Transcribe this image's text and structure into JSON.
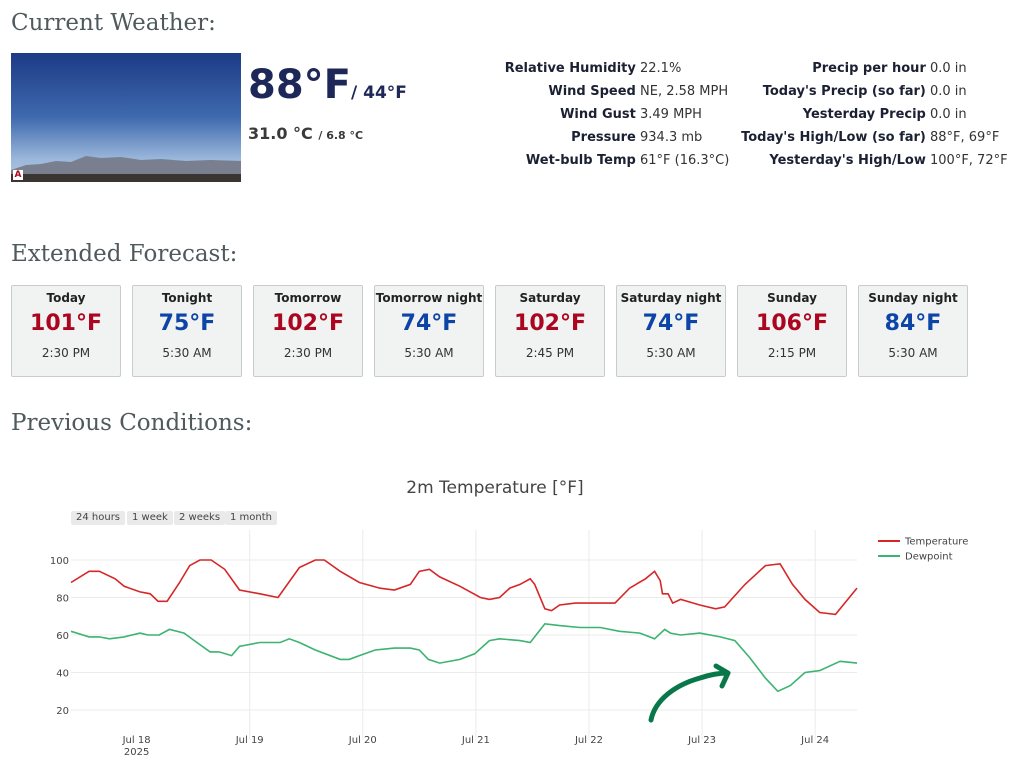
{
  "sections": {
    "current": "Current Weather:",
    "forecast": "Extended Forecast:",
    "previous": "Previous Conditions:"
  },
  "current": {
    "temp_f": "88°F",
    "dewpoint_f": "/ 44°F",
    "temp_c": "31.0 °C",
    "dewpoint_c": "/ 6.8 °C",
    "left_stats": [
      {
        "label": "Relative Humidity",
        "value": "22.1%"
      },
      {
        "label": "Wind Speed",
        "value": "NE, 2.58 MPH"
      },
      {
        "label": "Wind Gust",
        "value": "3.49 MPH"
      },
      {
        "label": "Pressure",
        "value": "934.3 mb"
      },
      {
        "label": "Wet-bulb Temp",
        "value": "61°F (16.3°C)"
      }
    ],
    "right_stats": [
      {
        "label": "Precip per hour",
        "value": "0.0 in"
      },
      {
        "label": "Today's Precip (so far)",
        "value": "0.0 in"
      },
      {
        "label": "Yesterday Precip",
        "value": "0.0 in"
      },
      {
        "label": "Today's High/Low (so far)",
        "value": "88°F, 69°F"
      },
      {
        "label": "Yesterday's High/Low",
        "value": "100°F, 72°F"
      }
    ]
  },
  "forecast": [
    {
      "period": "Today",
      "temp": "101°F",
      "time": "2:30 PM",
      "kind": "hot"
    },
    {
      "period": "Tonight",
      "temp": "75°F",
      "time": "5:30 AM",
      "kind": "cold"
    },
    {
      "period": "Tomorrow",
      "temp": "102°F",
      "time": "2:30 PM",
      "kind": "hot"
    },
    {
      "period": "Tomorrow night",
      "temp": "74°F",
      "time": "5:30 AM",
      "kind": "cold"
    },
    {
      "period": "Saturday",
      "temp": "102°F",
      "time": "2:45 PM",
      "kind": "hot"
    },
    {
      "period": "Saturday night",
      "temp": "74°F",
      "time": "5:30 AM",
      "kind": "cold"
    },
    {
      "period": "Sunday",
      "temp": "106°F",
      "time": "2:15 PM",
      "kind": "hot"
    },
    {
      "period": "Sunday night",
      "temp": "84°F",
      "time": "5:30 AM",
      "kind": "cold"
    }
  ],
  "range_buttons": [
    "24 hours",
    "1 week",
    "2 weeks",
    "1 month"
  ],
  "chart_data": {
    "type": "line",
    "title": "2m Temperature [°F]",
    "x_unit": "days since Jul 17 2025 00:00",
    "xlim": [
      0.42,
      7.37
    ],
    "ylim": [
      4,
      116
    ],
    "yticks": [
      20,
      40,
      60,
      80,
      100
    ],
    "xticks": [
      {
        "x": 1,
        "label": "Jul 18",
        "sub": "2025"
      },
      {
        "x": 2,
        "label": "Jul 19"
      },
      {
        "x": 3,
        "label": "Jul 20"
      },
      {
        "x": 4,
        "label": "Jul 21"
      },
      {
        "x": 5,
        "label": "Jul 22"
      },
      {
        "x": 6,
        "label": "Jul 23"
      },
      {
        "x": 7,
        "label": "Jul 24"
      }
    ],
    "legend_position": "top-right",
    "series": [
      {
        "name": "Temperature",
        "color": "#d62728",
        "x": [
          0.42,
          0.58,
          0.67,
          0.81,
          0.89,
          1.03,
          1.12,
          1.19,
          1.27,
          1.38,
          1.47,
          1.56,
          1.66,
          1.78,
          1.91,
          2.09,
          2.25,
          2.44,
          2.58,
          2.66,
          2.8,
          2.97,
          3.15,
          3.28,
          3.42,
          3.5,
          3.59,
          3.68,
          3.86,
          4.04,
          4.12,
          4.21,
          4.3,
          4.39,
          4.48,
          4.52,
          4.61,
          4.67,
          4.74,
          4.88,
          5.1,
          5.23,
          5.36,
          5.5,
          5.58,
          5.63,
          5.65,
          5.7,
          5.74,
          5.81,
          5.98,
          6.12,
          6.2,
          6.38,
          6.56,
          6.69,
          6.8,
          6.91,
          7.04,
          7.18,
          7.37
        ],
        "y": [
          88,
          94,
          94,
          90,
          86,
          83,
          82,
          78,
          78,
          88,
          97,
          100,
          100,
          95,
          84,
          82,
          80,
          96,
          100,
          100,
          94,
          88,
          85,
          84,
          87,
          94,
          95,
          91,
          86,
          80,
          79,
          80,
          85,
          87,
          90,
          87,
          74,
          73,
          76,
          77,
          77,
          77,
          85,
          90,
          94,
          89,
          82,
          82,
          77,
          79,
          76,
          74,
          75,
          87,
          97,
          98,
          87,
          79,
          72,
          71,
          85
        ]
      },
      {
        "name": "Dewpoint",
        "color": "#3cb371",
        "x": [
          0.42,
          0.58,
          0.67,
          0.76,
          0.89,
          1.03,
          1.1,
          1.2,
          1.29,
          1.42,
          1.51,
          1.65,
          1.73,
          1.84,
          1.91,
          2.09,
          2.27,
          2.35,
          2.44,
          2.58,
          2.8,
          2.88,
          2.97,
          3.11,
          3.28,
          3.42,
          3.5,
          3.58,
          3.68,
          3.86,
          3.99,
          4.12,
          4.21,
          4.39,
          4.48,
          4.61,
          4.74,
          4.92,
          5.1,
          5.27,
          5.45,
          5.58,
          5.67,
          5.72,
          5.81,
          5.98,
          6.16,
          6.29,
          6.42,
          6.56,
          6.67,
          6.78,
          6.91,
          7.04,
          7.22,
          7.37
        ],
        "y": [
          62,
          59,
          59,
          58,
          59,
          61,
          60,
          60,
          63,
          61,
          57,
          51,
          51,
          49,
          54,
          56,
          56,
          58,
          56,
          52,
          47,
          47,
          49,
          52,
          53,
          53,
          52,
          47,
          45,
          47,
          50,
          57,
          58,
          57,
          56,
          66,
          65,
          64,
          64,
          62,
          61,
          58,
          63,
          61,
          60,
          61,
          59,
          57,
          48,
          37,
          30,
          33,
          40,
          41,
          46,
          45
        ]
      }
    ]
  }
}
